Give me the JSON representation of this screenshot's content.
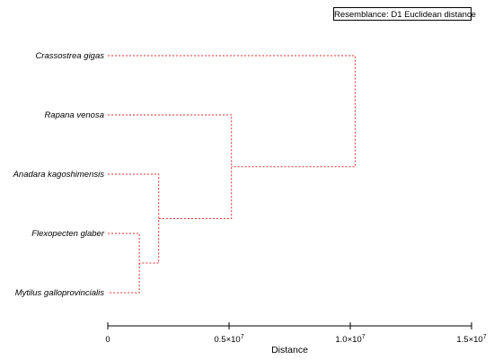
{
  "legend": {
    "text": "Resemblance: D1 Euclidean distance"
  },
  "chart_data": {
    "type": "dendrogram",
    "orientation": "horizontal",
    "leaves": [
      "Crassostrea gigas",
      "Rapana venosa",
      "Anadara kagoshimensis",
      "Flexopecten glaber",
      "Mytilus galloprovincialis"
    ],
    "merges": [
      {
        "left": "Flexopecten glaber",
        "right": "Mytilus galloprovincialis",
        "distance": 1300000
      },
      {
        "left": "Anadara kagoshimensis",
        "right": "m0",
        "distance": 2100000
      },
      {
        "left": "Rapana venosa",
        "right": "m1",
        "distance": 5100000
      },
      {
        "left": "Crassostrea gigas",
        "right": "m2",
        "distance": 10200000
      }
    ],
    "xlim": [
      0,
      15000000
    ],
    "ticks": [
      {
        "value": 0,
        "base": "0",
        "exp": ""
      },
      {
        "value": 5000000,
        "base": "0.5×10",
        "exp": "7"
      },
      {
        "value": 10000000,
        "base": "1.0×10",
        "exp": "7"
      },
      {
        "value": 15000000,
        "base": "1.5×10",
        "exp": "7"
      }
    ],
    "xlabel": "Distance",
    "line_color": "#e03030"
  }
}
